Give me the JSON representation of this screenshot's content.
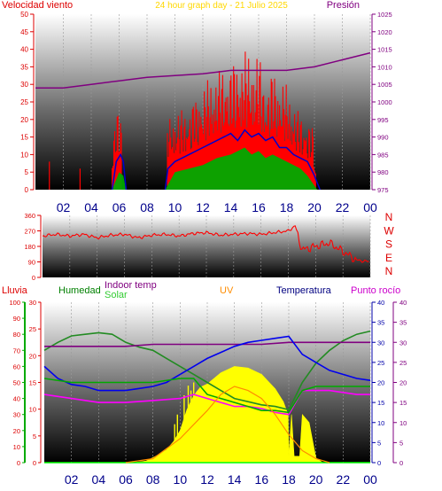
{
  "chart_data": [
    {
      "type": "line",
      "id": "wind",
      "title": "24 hour graph day - 21 Julio 2025",
      "left_axis_title": "Velocidad viento",
      "right_axis_title": "Presión",
      "left_ticks": [
        0,
        5,
        10,
        15,
        20,
        25,
        30,
        35,
        40,
        45,
        50
      ],
      "right_ticks": [
        975,
        980,
        985,
        990,
        995,
        1000,
        1005,
        1010,
        1015,
        1020,
        1025
      ],
      "ylim_left": [
        0,
        50
      ],
      "ylim_right": [
        975,
        1025
      ],
      "x_ticks": [
        "02",
        "04",
        "06",
        "08",
        "10",
        "12",
        "14",
        "16",
        "18",
        "20",
        "22",
        "00"
      ],
      "series": [
        {
          "color": "#ff0000",
          "axis": "left",
          "style": "spikes",
          "values": [
            [
              1.0,
              8
            ],
            [
              3.2,
              6
            ],
            [
              5.5,
              13
            ],
            [
              5.9,
              24
            ],
            [
              6.2,
              24
            ],
            [
              9.4,
              20
            ],
            [
              10.0,
              22
            ],
            [
              11.0,
              24
            ],
            [
              12.0,
              30
            ],
            [
              13.0,
              34
            ],
            [
              14.0,
              37
            ],
            [
              14.5,
              38
            ],
            [
              15.0,
              40
            ],
            [
              15.5,
              38
            ],
            [
              16.0,
              40
            ],
            [
              16.5,
              30
            ],
            [
              17.0,
              35
            ],
            [
              17.5,
              32
            ],
            [
              18.0,
              30
            ],
            [
              18.5,
              25
            ],
            [
              19.0,
              22
            ],
            [
              19.5,
              20
            ],
            [
              19.9,
              18
            ],
            [
              20.1,
              4
            ]
          ]
        },
        {
          "color": "#0000cc",
          "axis": "left",
          "values": [
            [
              5.5,
              0
            ],
            [
              5.8,
              8
            ],
            [
              6.1,
              10
            ],
            [
              6.3,
              8
            ],
            [
              6.5,
              0
            ],
            [
              9.3,
              0
            ],
            [
              9.5,
              6
            ],
            [
              10.0,
              8
            ],
            [
              11.0,
              10
            ],
            [
              12.0,
              12
            ],
            [
              13.0,
              14
            ],
            [
              14.0,
              16
            ],
            [
              14.5,
              14
            ],
            [
              15.0,
              17
            ],
            [
              15.5,
              15
            ],
            [
              16.0,
              16
            ],
            [
              16.5,
              14
            ],
            [
              17.0,
              15
            ],
            [
              17.5,
              12
            ],
            [
              18.0,
              12
            ],
            [
              18.5,
              10
            ],
            [
              19.0,
              9
            ],
            [
              19.5,
              8
            ],
            [
              20.0,
              4
            ],
            [
              20.2,
              2
            ],
            [
              20.4,
              0
            ]
          ]
        },
        {
          "color": "#00aa00",
          "axis": "left",
          "values": [
            [
              5.5,
              0
            ],
            [
              6.0,
              5
            ],
            [
              6.3,
              4
            ],
            [
              6.5,
              0
            ],
            [
              9.3,
              0
            ],
            [
              10.0,
              5
            ],
            [
              11.0,
              6
            ],
            [
              12.0,
              7
            ],
            [
              13.0,
              9
            ],
            [
              14.0,
              10
            ],
            [
              15.0,
              12
            ],
            [
              15.5,
              10
            ],
            [
              16.0,
              11
            ],
            [
              16.5,
              9
            ],
            [
              17.0,
              10
            ],
            [
              18.0,
              8
            ],
            [
              19.0,
              6
            ],
            [
              19.5,
              4
            ],
            [
              20.2,
              0
            ]
          ]
        },
        {
          "color": "#800080",
          "axis": "right",
          "values": [
            [
              0,
              1004
            ],
            [
              2,
              1004
            ],
            [
              4,
              1005
            ],
            [
              6,
              1006
            ],
            [
              8,
              1007
            ],
            [
              10,
              1007.5
            ],
            [
              12,
              1008
            ],
            [
              14,
              1009
            ],
            [
              16,
              1009
            ],
            [
              18,
              1009
            ],
            [
              20,
              1010
            ],
            [
              22,
              1012
            ],
            [
              24,
              1014
            ]
          ]
        }
      ]
    },
    {
      "type": "line",
      "id": "direction",
      "left_ticks": [
        0,
        90,
        180,
        270,
        360
      ],
      "ylim": [
        0,
        360
      ],
      "right_labels": [
        "N",
        "W",
        "S",
        "E",
        "N"
      ],
      "series": [
        {
          "color": "#ff0000",
          "values": [
            [
              0,
              240
            ],
            [
              1,
              250
            ],
            [
              2,
              240
            ],
            [
              3,
              250
            ],
            [
              4,
              230
            ],
            [
              5,
              245
            ],
            [
              6,
              250
            ],
            [
              7,
              230
            ],
            [
              8,
              245
            ],
            [
              9,
              250
            ],
            [
              10,
              240
            ],
            [
              11,
              255
            ],
            [
              12,
              260
            ],
            [
              13,
              245
            ],
            [
              14,
              250
            ],
            [
              15,
              255
            ],
            [
              16,
              250
            ],
            [
              17,
              260
            ],
            [
              18,
              270
            ],
            [
              18.5,
              300
            ],
            [
              19,
              160
            ],
            [
              20,
              180
            ],
            [
              21,
              200
            ],
            [
              22,
              150
            ],
            [
              23,
              100
            ],
            [
              24,
              90
            ]
          ]
        }
      ]
    },
    {
      "type": "line",
      "id": "temp",
      "left_outer_axis_title": "Lluvia",
      "left_outer_ticks": [
        0,
        10,
        20,
        30,
        40,
        50,
        60,
        70,
        80,
        90,
        100
      ],
      "left_inner_axis_title": "Humedad",
      "left_inner_ticks": [
        0,
        5,
        10,
        15,
        20,
        25,
        30
      ],
      "top_labels": {
        "indoor": "Indoor temp",
        "solar": "Solar",
        "uv": "UV",
        "temperatura": "Temperatura",
        "punto_rocio": "Punto rocío"
      },
      "right_inner_ticks": [
        0,
        5,
        10,
        15,
        20,
        25,
        30,
        35,
        40
      ],
      "right_outer_ticks": [
        0,
        5,
        10,
        15,
        20,
        25,
        30,
        35,
        40
      ],
      "series": [
        {
          "name": "Humedad",
          "color": "#228b22",
          "scale": "pct",
          "values": [
            [
              0,
              70
            ],
            [
              1,
              75
            ],
            [
              2,
              79
            ],
            [
              3,
              80
            ],
            [
              4,
              81
            ],
            [
              5,
              80
            ],
            [
              6,
              75
            ],
            [
              7,
              72
            ],
            [
              8,
              70
            ],
            [
              9,
              65
            ],
            [
              10,
              60
            ],
            [
              11,
              55
            ],
            [
              12,
              50
            ],
            [
              13,
              45
            ],
            [
              14,
              40
            ],
            [
              15,
              38
            ],
            [
              16,
              36
            ],
            [
              17,
              35
            ],
            [
              18,
              33
            ],
            [
              19,
              50
            ],
            [
              20,
              62
            ],
            [
              21,
              70
            ],
            [
              22,
              76
            ],
            [
              23,
              80
            ],
            [
              24,
              82
            ]
          ]
        },
        {
          "name": "Indoor temp",
          "color": "#800080",
          "scale": "temp",
          "values": [
            [
              0,
              29
            ],
            [
              2,
              29
            ],
            [
              4,
              29
            ],
            [
              6,
              29
            ],
            [
              8,
              29.5
            ],
            [
              10,
              29.5
            ],
            [
              12,
              29.5
            ],
            [
              14,
              29.5
            ],
            [
              16,
              29.5
            ],
            [
              18,
              30
            ],
            [
              20,
              30
            ],
            [
              22,
              30
            ],
            [
              24,
              30
            ]
          ]
        },
        {
          "name": "Temperatura",
          "color": "#0000ee",
          "scale": "temp",
          "values": [
            [
              0,
              24
            ],
            [
              1,
              21
            ],
            [
              2,
              19.5
            ],
            [
              3,
              19
            ],
            [
              4,
              18
            ],
            [
              5,
              18
            ],
            [
              6,
              18
            ],
            [
              7,
              18.5
            ],
            [
              8,
              19
            ],
            [
              9,
              20
            ],
            [
              10,
              22
            ],
            [
              11,
              24
            ],
            [
              12,
              26
            ],
            [
              13,
              27.5
            ],
            [
              14,
              29
            ],
            [
              15,
              30
            ],
            [
              16,
              30.5
            ],
            [
              17,
              31
            ],
            [
              18,
              31.5
            ],
            [
              19,
              27
            ],
            [
              20,
              25
            ],
            [
              21,
              23
            ],
            [
              22,
              22
            ],
            [
              23,
              21
            ],
            [
              24,
              20.5
            ]
          ]
        },
        {
          "name": "Punto rocío",
          "color": "#ff00ff",
          "scale": "temp",
          "values": [
            [
              0,
              17
            ],
            [
              2,
              16
            ],
            [
              4,
              15
            ],
            [
              6,
              15
            ],
            [
              8,
              15.5
            ],
            [
              10,
              16
            ],
            [
              11,
              17
            ],
            [
              12,
              16
            ],
            [
              13,
              15
            ],
            [
              14,
              14
            ],
            [
              15,
              14
            ],
            [
              16,
              13.5
            ],
            [
              17,
              12.5
            ],
            [
              18,
              12
            ],
            [
              19,
              18
            ],
            [
              20,
              18
            ],
            [
              21,
              18
            ],
            [
              22,
              17.5
            ],
            [
              23,
              17
            ],
            [
              24,
              17
            ]
          ]
        },
        {
          "name": "green-temp",
          "color": "#00aa00",
          "scale": "temp",
          "values": [
            [
              0,
              21
            ],
            [
              2,
              20
            ],
            [
              4,
              20
            ],
            [
              6,
              20
            ],
            [
              8,
              20
            ],
            [
              10,
              21
            ],
            [
              11,
              21
            ],
            [
              12,
              17
            ],
            [
              13,
              16
            ],
            [
              14,
              15
            ],
            [
              15,
              14
            ],
            [
              16,
              13
            ],
            [
              17,
              13
            ],
            [
              18,
              12.5
            ],
            [
              19,
              18
            ],
            [
              20,
              19
            ],
            [
              22,
              19
            ],
            [
              24,
              19
            ]
          ]
        },
        {
          "name": "UV",
          "color": "#ff8c00",
          "scale": "temp",
          "values": [
            [
              6,
              0
            ],
            [
              8,
              1
            ],
            [
              10,
              6
            ],
            [
              12,
              13
            ],
            [
              13,
              17
            ],
            [
              14,
              19
            ],
            [
              15,
              18
            ],
            [
              16,
              16
            ],
            [
              17,
              12
            ],
            [
              18,
              7
            ],
            [
              19,
              3
            ],
            [
              20,
              1
            ],
            [
              21,
              0
            ]
          ]
        }
      ],
      "solar": {
        "color": "#ffff00",
        "stroke": "#ffff00",
        "values": [
          [
            6.5,
            0
          ],
          [
            7.5,
            1
          ],
          [
            8.2,
            4
          ],
          [
            9,
            8
          ],
          [
            9.5,
            13
          ],
          [
            10,
            20
          ],
          [
            10.5,
            33
          ],
          [
            10.9,
            40
          ],
          [
            11.2,
            44
          ],
          [
            11.5,
            47
          ],
          [
            12,
            49
          ],
          [
            13,
            56
          ],
          [
            14,
            60
          ],
          [
            15,
            59
          ],
          [
            16,
            55
          ],
          [
            17,
            46
          ],
          [
            17.6,
            38
          ],
          [
            17.95,
            30
          ],
          [
            18,
            4
          ],
          [
            18.2,
            30
          ],
          [
            18.4,
            4
          ],
          [
            18.8,
            4
          ],
          [
            19,
            30
          ],
          [
            19.5,
            25
          ],
          [
            20,
            3
          ],
          [
            20.5,
            0
          ]
        ]
      },
      "rain": {
        "color": "#00ff00",
        "values": [
          [
            0,
            0
          ],
          [
            24,
            0
          ]
        ]
      }
    }
  ]
}
